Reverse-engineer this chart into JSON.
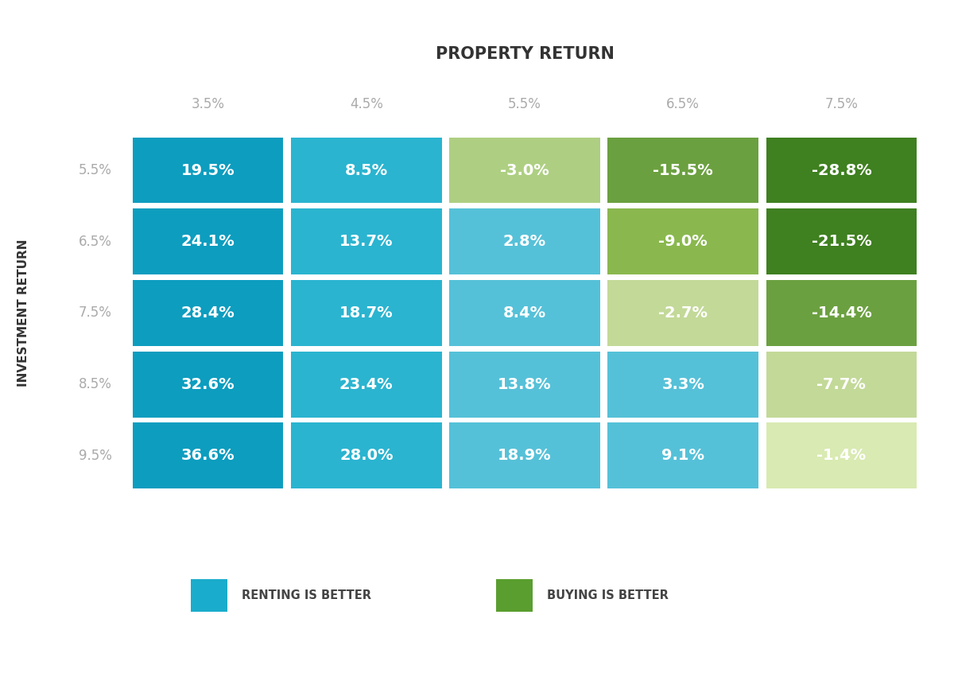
{
  "title": "PROPERTY RETURN",
  "ylabel": "INVESTMENT RETURN",
  "col_labels": [
    "3.5%",
    "4.5%",
    "5.5%",
    "6.5%",
    "7.5%"
  ],
  "row_labels": [
    "5.5%",
    "6.5%",
    "7.5%",
    "8.5%",
    "9.5%"
  ],
  "values": [
    [
      "19.5%",
      "8.5%",
      "-3.0%",
      "-15.5%",
      "-28.8%"
    ],
    [
      "24.1%",
      "13.7%",
      "2.8%",
      "-9.0%",
      "-21.5%"
    ],
    [
      "28.4%",
      "18.7%",
      "8.4%",
      "-2.7%",
      "-14.4%"
    ],
    [
      "32.6%",
      "23.4%",
      "13.8%",
      "3.3%",
      "-7.7%"
    ],
    [
      "36.6%",
      "28.0%",
      "18.9%",
      "9.1%",
      "-1.4%"
    ]
  ],
  "color_map": [
    [
      "#0D9DBF",
      "#2AB4D0",
      "#AECF82",
      "#6BA040",
      "#3F8020"
    ],
    [
      "#0D9DBF",
      "#2AB4D0",
      "#55C1D8",
      "#8AB84E",
      "#3F8020"
    ],
    [
      "#0D9DBF",
      "#2AB4D0",
      "#55C1D8",
      "#C3D998",
      "#6BA040"
    ],
    [
      "#0D9DBF",
      "#2AB4D0",
      "#55C1D8",
      "#55C1D8",
      "#C3D998"
    ],
    [
      "#0D9DBF",
      "#2AB4D0",
      "#55C1D8",
      "#55C1D8",
      "#D9EAB2"
    ]
  ],
  "legend_renting_color": "#1AACCC",
  "legend_buying_color": "#5A9E2F",
  "text_color": "#FFFFFF",
  "label_color": "#AAAAAA",
  "title_color": "#333333",
  "background_color": "#FFFFFF",
  "legend_renting_label": "RENTING IS BETTER",
  "legend_buying_label": "BUYING IS BETTER",
  "separator_color": "#CCCCCC"
}
